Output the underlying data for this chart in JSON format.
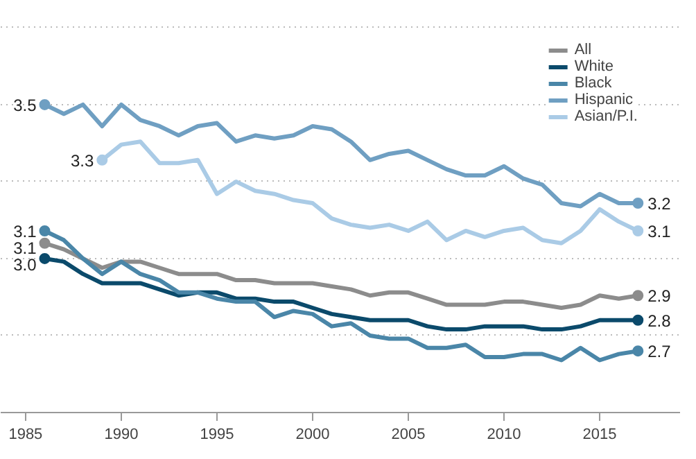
{
  "chart_data": {
    "type": "line",
    "x": [
      1986,
      1987,
      1988,
      1989,
      1990,
      1991,
      1992,
      1993,
      1994,
      1995,
      1996,
      1997,
      1998,
      1999,
      2000,
      2001,
      2002,
      2003,
      2004,
      2005,
      2006,
      2007,
      2008,
      2009,
      2010,
      2011,
      2012,
      2013,
      2014,
      2015,
      2016,
      2017
    ],
    "series": [
      {
        "name": "All",
        "color": "#8c8c8c",
        "values": [
          3.05,
          3.03,
          3.0,
          2.97,
          2.99,
          2.99,
          2.97,
          2.95,
          2.95,
          2.95,
          2.93,
          2.93,
          2.92,
          2.92,
          2.92,
          2.91,
          2.9,
          2.88,
          2.89,
          2.89,
          2.87,
          2.85,
          2.85,
          2.85,
          2.86,
          2.86,
          2.85,
          2.84,
          2.85,
          2.88,
          2.87,
          2.88
        ],
        "value_labels": [
          "3.1",
          null,
          null,
          null,
          null,
          null,
          null,
          null,
          null,
          null,
          null,
          null,
          null,
          null,
          null,
          null,
          null,
          null,
          null,
          null,
          null,
          null,
          null,
          null,
          null,
          null,
          null,
          null,
          null,
          null,
          null,
          "2.9"
        ]
      },
      {
        "name": "White",
        "color": "#0b4a6b",
        "values": [
          3.0,
          2.99,
          2.95,
          2.92,
          2.92,
          2.92,
          2.9,
          2.88,
          2.89,
          2.89,
          2.87,
          2.87,
          2.86,
          2.86,
          2.84,
          2.82,
          2.81,
          2.8,
          2.8,
          2.8,
          2.78,
          2.77,
          2.77,
          2.78,
          2.78,
          2.78,
          2.77,
          2.77,
          2.78,
          2.8,
          2.8,
          2.8
        ],
        "value_labels": [
          "3.0",
          null,
          null,
          null,
          null,
          null,
          null,
          null,
          null,
          null,
          null,
          null,
          null,
          null,
          null,
          null,
          null,
          null,
          null,
          null,
          null,
          null,
          null,
          null,
          null,
          null,
          null,
          null,
          null,
          null,
          null,
          "2.8"
        ]
      },
      {
        "name": "Black",
        "color": "#4a86a8",
        "values": [
          3.09,
          3.06,
          3.0,
          2.95,
          2.99,
          2.95,
          2.93,
          2.89,
          2.89,
          2.87,
          2.86,
          2.86,
          2.81,
          2.83,
          2.82,
          2.78,
          2.79,
          2.75,
          2.74,
          2.74,
          2.71,
          2.71,
          2.72,
          2.68,
          2.68,
          2.69,
          2.69,
          2.67,
          2.71,
          2.67,
          2.69,
          2.7
        ],
        "value_labels": [
          "3.1",
          null,
          null,
          null,
          null,
          null,
          null,
          null,
          null,
          null,
          null,
          null,
          null,
          null,
          null,
          null,
          null,
          null,
          null,
          null,
          null,
          null,
          null,
          null,
          null,
          null,
          null,
          null,
          null,
          null,
          null,
          "2.7"
        ]
      },
      {
        "name": "Hispanic",
        "color": "#6f9fc2",
        "values": [
          3.5,
          3.47,
          3.5,
          3.43,
          3.5,
          3.45,
          3.43,
          3.4,
          3.43,
          3.44,
          3.38,
          3.4,
          3.39,
          3.4,
          3.43,
          3.42,
          3.38,
          3.32,
          3.34,
          3.35,
          3.32,
          3.29,
          3.27,
          3.27,
          3.3,
          3.26,
          3.24,
          3.18,
          3.17,
          3.21,
          3.18,
          3.18
        ],
        "value_labels": [
          "3.5",
          null,
          null,
          null,
          null,
          null,
          null,
          null,
          null,
          null,
          null,
          null,
          null,
          null,
          null,
          null,
          null,
          null,
          null,
          null,
          null,
          null,
          null,
          null,
          null,
          null,
          null,
          null,
          null,
          null,
          null,
          "3.2"
        ]
      },
      {
        "name": "Asian/P.I.",
        "color": "#aacbe6",
        "values": [
          null,
          null,
          null,
          3.32,
          3.37,
          3.38,
          3.31,
          3.31,
          3.32,
          3.21,
          3.25,
          3.22,
          3.21,
          3.19,
          3.18,
          3.13,
          3.11,
          3.1,
          3.11,
          3.09,
          3.12,
          3.06,
          3.09,
          3.07,
          3.09,
          3.1,
          3.06,
          3.05,
          3.09,
          3.16,
          3.12,
          3.09
        ],
        "value_labels": [
          null,
          null,
          null,
          "3.3",
          null,
          null,
          null,
          null,
          null,
          null,
          null,
          null,
          null,
          null,
          null,
          null,
          null,
          null,
          null,
          null,
          null,
          null,
          null,
          null,
          null,
          null,
          null,
          null,
          null,
          null,
          null,
          "3.1"
        ]
      }
    ],
    "xlim": [
      1983.7,
      2019.2
    ],
    "xticks": [
      1985,
      1990,
      1995,
      2000,
      2005,
      2010,
      2015
    ],
    "yticks": [
      {
        "value": 2.5,
        "label": null
      },
      {
        "value": 2.75,
        "label": null
      },
      {
        "value": 3.0,
        "label": null
      },
      {
        "value": 3.25,
        "label": null
      },
      {
        "value": 3.5,
        "label": null
      },
      {
        "value": 3.75,
        "label": null
      }
    ],
    "tick_labels": "x",
    "grid": "y",
    "legend": "top right"
  }
}
